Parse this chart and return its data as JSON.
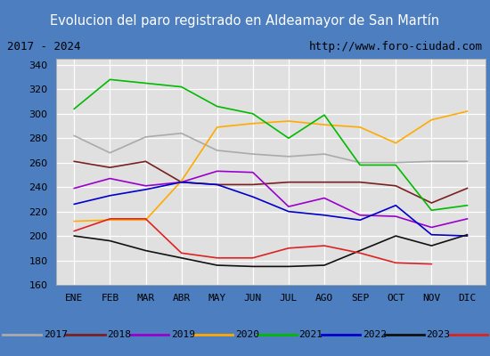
{
  "title": "Evolucion del paro registrado en Aldeamayor de San Martín",
  "subtitle_left": "2017 - 2024",
  "subtitle_right": "http://www.foro-ciudad.com",
  "months": [
    "ENE",
    "FEB",
    "MAR",
    "ABR",
    "MAY",
    "JUN",
    "JUL",
    "AGO",
    "SEP",
    "OCT",
    "NOV",
    "DIC"
  ],
  "ylim": [
    160,
    345
  ],
  "yticks": [
    160,
    180,
    200,
    220,
    240,
    260,
    280,
    300,
    320,
    340
  ],
  "series": {
    "2017": {
      "color": "#aaaaaa",
      "values": [
        282,
        268,
        281,
        284,
        270,
        267,
        265,
        267,
        260,
        260,
        261,
        261
      ]
    },
    "2018": {
      "color": "#7a2020",
      "values": [
        261,
        256,
        261,
        244,
        242,
        242,
        244,
        244,
        244,
        241,
        227,
        239
      ]
    },
    "2019": {
      "color": "#9900cc",
      "values": [
        239,
        247,
        241,
        244,
        253,
        252,
        224,
        231,
        217,
        216,
        207,
        214
      ]
    },
    "2020": {
      "color": "#ffaa00",
      "values": [
        212,
        213,
        213,
        245,
        289,
        292,
        294,
        291,
        289,
        276,
        295,
        302
      ]
    },
    "2021": {
      "color": "#00bb00",
      "values": [
        304,
        328,
        325,
        322,
        306,
        300,
        280,
        299,
        258,
        258,
        221,
        225
      ]
    },
    "2022": {
      "color": "#0000cc",
      "values": [
        226,
        233,
        238,
        244,
        242,
        232,
        220,
        217,
        213,
        225,
        201,
        200
      ]
    },
    "2023": {
      "color": "#111111",
      "values": [
        200,
        196,
        188,
        182,
        176,
        175,
        175,
        176,
        188,
        200,
        192,
        201
      ]
    },
    "2024": {
      "color": "#dd2222",
      "values": [
        204,
        214,
        214,
        186,
        182,
        182,
        190,
        192,
        186,
        178,
        177,
        null
      ]
    }
  },
  "title_bg": "#4d7ebf",
  "title_color": "white",
  "title_fontsize": 11,
  "subtitle_fontsize": 9,
  "plot_bg": "#e0e0e0",
  "frame_color": "#4d7ebf",
  "legend_bg": "#f0f0f0"
}
